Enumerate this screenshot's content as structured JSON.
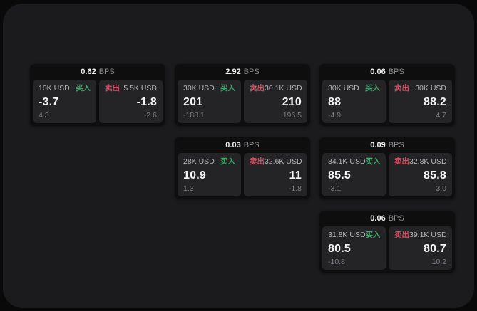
{
  "labels": {
    "buy": "买入",
    "sell": "卖出",
    "bps_unit": "BPS"
  },
  "colors": {
    "buy_green": "#3fa76b",
    "sell_red": "#cf4f61",
    "frame_bg": "#1b1b1d",
    "card_bg": "#0e0e0f",
    "panel_bg": "#242427"
  },
  "cards": [
    {
      "row": 1,
      "col": 1,
      "bps": "0.62",
      "buy": {
        "size": "10K USD",
        "value": "-3.7",
        "delta": "4.3"
      },
      "sell": {
        "size": "5.5K USD",
        "value": "-1.8",
        "delta": "-2.6"
      }
    },
    {
      "row": 1,
      "col": 2,
      "bps": "2.92",
      "buy": {
        "size": "30K USD",
        "value": "201",
        "delta": "-188.1"
      },
      "sell": {
        "size": "30.1K USD",
        "value": "210",
        "delta": "196.5"
      }
    },
    {
      "row": 1,
      "col": 3,
      "bps": "0.06",
      "buy": {
        "size": "30K USD",
        "value": "88",
        "delta": "-4.9"
      },
      "sell": {
        "size": "30K USD",
        "value": "88.2",
        "delta": "4.7"
      }
    },
    {
      "row": 2,
      "col": 2,
      "bps": "0.03",
      "buy": {
        "size": "28K USD",
        "value": "10.9",
        "delta": "1.3"
      },
      "sell": {
        "size": "32.6K USD",
        "value": "11",
        "delta": "-1.8"
      }
    },
    {
      "row": 2,
      "col": 3,
      "bps": "0.09",
      "buy": {
        "size": "34.1K USD",
        "value": "85.5",
        "delta": "-3.1"
      },
      "sell": {
        "size": "32.8K USD",
        "value": "85.8",
        "delta": "3.0"
      }
    },
    {
      "row": 3,
      "col": 3,
      "bps": "0.06",
      "buy": {
        "size": "31.8K USD",
        "value": "80.5",
        "delta": "-10.8"
      },
      "sell": {
        "size": "39.1K USD",
        "value": "80.7",
        "delta": "10.2"
      }
    }
  ]
}
